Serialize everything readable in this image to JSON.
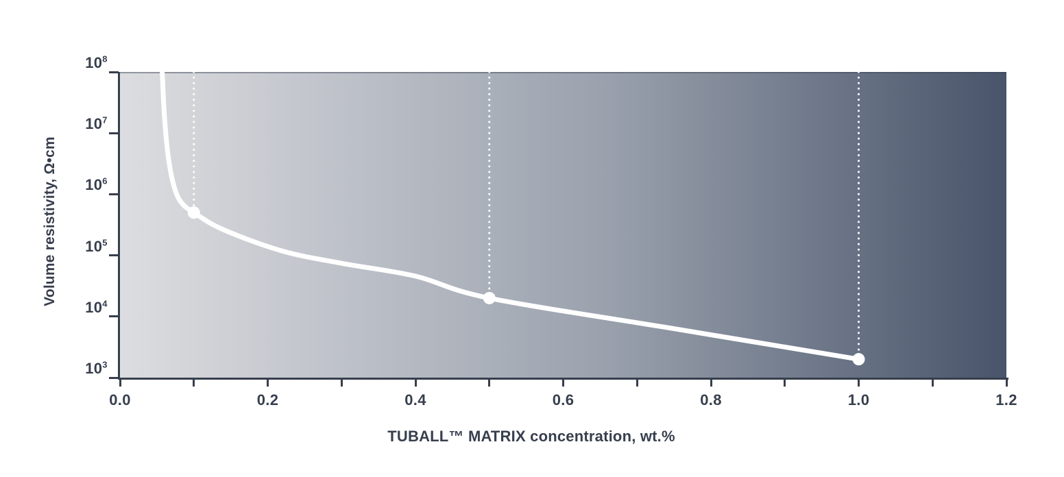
{
  "chart_data": {
    "type": "line",
    "title": "",
    "xlabel": "TUBALL™ MATRIX concentration, wt.%",
    "ylabel": "Volume resistivity, Ω•cm",
    "x_axis": {
      "min": 0,
      "max": 1.2,
      "minor_tick_values": [
        0,
        0.1,
        0.2,
        0.3,
        0.4,
        0.5,
        0.6,
        0.7,
        0.8,
        0.9,
        1.0,
        1.1,
        1.2
      ],
      "major_ticks": [
        {
          "value": 0.0,
          "label": "0.0"
        },
        {
          "value": 0.2,
          "label": "0.2"
        },
        {
          "value": 0.4,
          "label": "0.4"
        },
        {
          "value": 0.6,
          "label": "0.6"
        },
        {
          "value": 0.8,
          "label": "0.8"
        },
        {
          "value": 1.0,
          "label": "1.0"
        },
        {
          "value": 1.2,
          "label": "1.2"
        }
      ]
    },
    "y_axis": {
      "scale": "log10",
      "base_label": "10",
      "tick_exponents": [
        8,
        7,
        6,
        5,
        4,
        3
      ],
      "min_exp": 3,
      "max_exp": 8
    },
    "series": [
      {
        "name": "volume-resistivity-vs-concentration",
        "color": "#ffffff",
        "line_width": 7,
        "marked_points": [
          {
            "x": 0.1,
            "y": 500000
          },
          {
            "x": 0.5,
            "y": 20000
          },
          {
            "x": 1.0,
            "y": 2000
          }
        ],
        "marker_radius": 9,
        "curve_points_x_log10y": [
          [
            0.057,
            8.06
          ],
          [
            0.06,
            7.3
          ],
          [
            0.065,
            6.65
          ],
          [
            0.072,
            6.18
          ],
          [
            0.082,
            5.88
          ],
          [
            0.1,
            5.7
          ],
          [
            0.14,
            5.42
          ],
          [
            0.22,
            5.07
          ],
          [
            0.3,
            4.87
          ],
          [
            0.4,
            4.66
          ],
          [
            0.5,
            4.3
          ],
          [
            0.75,
            3.8
          ],
          [
            1.0,
            3.3
          ]
        ]
      }
    ],
    "guide_lines": {
      "style": "dotted",
      "color": "#ffffff",
      "x_values": [
        0.1,
        0.5,
        1.0
      ]
    },
    "plot_gradient": {
      "left": "#dcdde0",
      "right": "#48546a"
    },
    "axis_color": "#373f4d",
    "text_color": "#373f4d",
    "background": "#ffffff",
    "grid": "off",
    "legend": "none"
  }
}
